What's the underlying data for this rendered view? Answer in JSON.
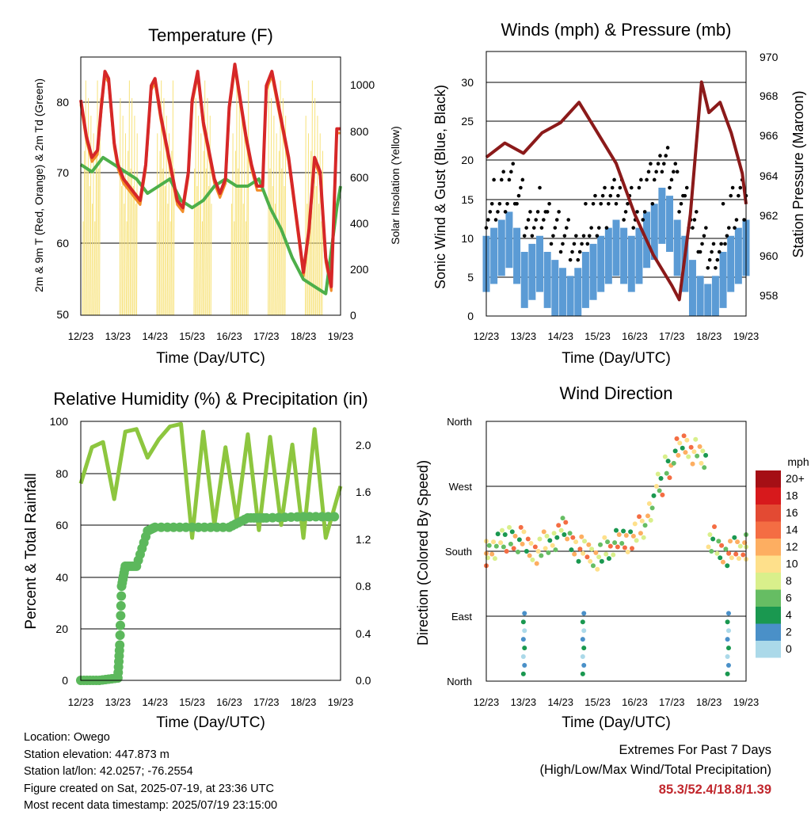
{
  "charts": {
    "temperature": {
      "title": "Temperature (F)",
      "xlabel": "Time (Day/UTC)",
      "ylabel_left": "2m & 9m T (Red, Orange) & 2m Td (Green)",
      "ylabel_right": "Solar Insolation (Yellow)",
      "xticks": [
        "12/23",
        "13/23",
        "14/23",
        "15/23",
        "16/23",
        "17/23",
        "18/23",
        "19/23"
      ],
      "yticks_left": [
        "50",
        "60",
        "70",
        "80"
      ],
      "yticks_right": [
        "0",
        "200",
        "400",
        "600",
        "800",
        "1000"
      ]
    },
    "winds": {
      "title": "Winds (mph) & Pressure (mb)",
      "xlabel": "Time (Day/UTC)",
      "ylabel_left": "Sonic Wind & Gust (Blue, Black)",
      "ylabel_right": "Station Pressure (Maroon)",
      "xticks": [
        "12/23",
        "13/23",
        "14/23",
        "15/23",
        "16/23",
        "17/23",
        "18/23",
        "19/23"
      ],
      "yticks_left": [
        "0",
        "5",
        "10",
        "15",
        "20",
        "25",
        "30"
      ],
      "yticks_right": [
        "958",
        "960",
        "962",
        "964",
        "966",
        "968",
        "970"
      ]
    },
    "humidity": {
      "title": "Relative Humidity (%) & Precipitation (in)",
      "xlabel": "Time (Day/UTC)",
      "ylabel_left": "Percent & Total Rainfall",
      "xticks": [
        "12/23",
        "13/23",
        "14/23",
        "15/23",
        "16/23",
        "17/23",
        "18/23",
        "19/23"
      ],
      "yticks_left": [
        "0",
        "20",
        "40",
        "60",
        "80",
        "100"
      ],
      "yticks_right": [
        "0.0",
        "0.4",
        "0.8",
        "1.2",
        "1.6",
        "2.0"
      ]
    },
    "direction": {
      "title": "Wind Direction",
      "xlabel": "Time (Day/UTC)",
      "ylabel_left": "Direction (Colored By Speed)",
      "xticks": [
        "12/23",
        "13/23",
        "14/23",
        "15/23",
        "16/23",
        "17/23",
        "18/23",
        "19/23"
      ],
      "yticks_left": [
        "North",
        "East",
        "South",
        "West",
        "North"
      ],
      "legend_title": "mph",
      "legend_labels": [
        "20+",
        "18",
        "16",
        "14",
        "12",
        "10",
        "8",
        "6",
        "4",
        "2",
        "0"
      ],
      "legend_colors": [
        "#a50f15",
        "#d7191c",
        "#e34a33",
        "#f46d43",
        "#fdae61",
        "#fee08b",
        "#d9ef8b",
        "#66bd63",
        "#1a9850",
        "#4a90c8",
        "#abd9e9"
      ]
    }
  },
  "footer": {
    "location": "Location: Owego",
    "elevation": "Station elevation: 447.873 m",
    "latlon": "Station lat/lon: 42.0257; -76.2554",
    "created": "Figure created on Sat, 2025-07-19, at 23:36 UTC",
    "recent": "Most recent data timestamp: 2025/07/19 23:15:00",
    "extremes_title": "Extremes For Past 7 Days",
    "extremes_sub": "(High/Low/Max Wind/Total Precipitation)",
    "extremes_values": "85.3/52.4/18.8/1.39"
  },
  "chart_data": [
    {
      "type": "line",
      "title": "Temperature (F)",
      "x_range": [
        "12/23",
        "19/23"
      ],
      "ylim": [
        50,
        86
      ],
      "y2lim": [
        0,
        1100
      ],
      "series": [
        {
          "name": "2m T",
          "color": "#d62728",
          "x": [
            0,
            0.15,
            0.3,
            0.45,
            0.55,
            0.65,
            0.75,
            0.9,
            1.0,
            1.15,
            1.3,
            1.45,
            1.6,
            1.75,
            1.9,
            2.0,
            2.15,
            2.3,
            2.45,
            2.6,
            2.75,
            2.9,
            3.0,
            3.15,
            3.3,
            3.45,
            3.6,
            3.75,
            3.9,
            4.0,
            4.15,
            4.3,
            4.45,
            4.6,
            4.75,
            4.9,
            5.0,
            5.15,
            5.3,
            5.45,
            5.6,
            5.75,
            5.9,
            6.0,
            6.15,
            6.3,
            6.45,
            6.6,
            6.75,
            6.9,
            7.0
          ],
          "values": [
            80,
            75,
            72,
            73,
            79,
            84,
            83,
            74,
            71,
            69,
            68,
            67,
            66,
            71,
            82,
            83,
            78,
            74,
            70,
            66,
            65,
            70,
            80,
            84,
            77,
            73,
            69,
            67,
            69,
            79,
            85,
            80,
            75,
            71,
            68,
            68,
            82,
            84,
            80,
            76,
            72,
            66,
            60,
            56,
            62,
            72,
            70,
            58,
            54,
            76,
            76
          ]
        },
        {
          "name": "2m Td",
          "color": "#4daf4a",
          "x": [
            0,
            0.3,
            0.6,
            0.9,
            1.2,
            1.5,
            1.8,
            2.1,
            2.4,
            2.7,
            3.0,
            3.3,
            3.6,
            3.9,
            4.2,
            4.5,
            4.8,
            5.1,
            5.4,
            5.7,
            6.0,
            6.3,
            6.6,
            6.9,
            7.0
          ],
          "values": [
            71,
            70,
            72,
            71,
            70,
            69,
            67,
            68,
            69,
            66,
            65,
            66,
            68,
            69,
            68,
            68,
            69,
            65,
            62,
            58,
            55,
            54,
            53,
            65,
            68
          ]
        }
      ]
    },
    {
      "type": "line",
      "title": "Winds (mph) & Pressure (mb)",
      "x_range": [
        "12/23",
        "19/23"
      ],
      "ylim": [
        0,
        33
      ],
      "y2lim": [
        957,
        970
      ],
      "series": [
        {
          "name": "Station Pressure",
          "color": "#8b1a1a",
          "x": [
            0,
            0.5,
            1.0,
            1.5,
            2.0,
            2.5,
            3.0,
            3.5,
            4.0,
            4.5,
            5.0,
            5.2,
            5.5,
            5.8,
            6.0,
            6.3,
            6.6,
            6.9,
            7.0
          ],
          "values": [
            964.8,
            965.5,
            965.0,
            966.0,
            966.5,
            967.5,
            966.0,
            964.5,
            962.0,
            960.0,
            958.5,
            957.8,
            962,
            968.5,
            967.0,
            967.5,
            966.0,
            964.0,
            962.5
          ]
        }
      ]
    },
    {
      "type": "line",
      "title": "Relative Humidity (%) & Precipitation (in)",
      "x_range": [
        "12/23",
        "19/23"
      ],
      "ylim": [
        0,
        100
      ],
      "y2lim": [
        0,
        2.2
      ],
      "series": [
        {
          "name": "Relative Humidity",
          "color": "#8dc63f",
          "x": [
            0,
            0.3,
            0.6,
            0.9,
            1.2,
            1.5,
            1.8,
            2.1,
            2.4,
            2.7,
            3.0,
            3.3,
            3.6,
            3.9,
            4.2,
            4.5,
            4.8,
            5.1,
            5.4,
            5.7,
            6.0,
            6.3,
            6.6,
            6.9,
            7.0
          ],
          "values": [
            76,
            90,
            92,
            70,
            96,
            97,
            86,
            93,
            98,
            99,
            55,
            96,
            60,
            90,
            62,
            95,
            58,
            94,
            60,
            91,
            55,
            97,
            55,
            70,
            75
          ]
        },
        {
          "name": "Total Rainfall",
          "color": "#5cb85c",
          "x": [
            0,
            0.5,
            1.0,
            1.05,
            1.1,
            1.2,
            1.5,
            1.8,
            2.0,
            3.0,
            4.0,
            4.5,
            5.0,
            6.0,
            7.0
          ],
          "values": [
            0,
            0,
            0.02,
            0.3,
            0.8,
            0.97,
            0.97,
            1.27,
            1.3,
            1.3,
            1.3,
            1.38,
            1.38,
            1.39,
            1.39
          ]
        }
      ]
    }
  ]
}
